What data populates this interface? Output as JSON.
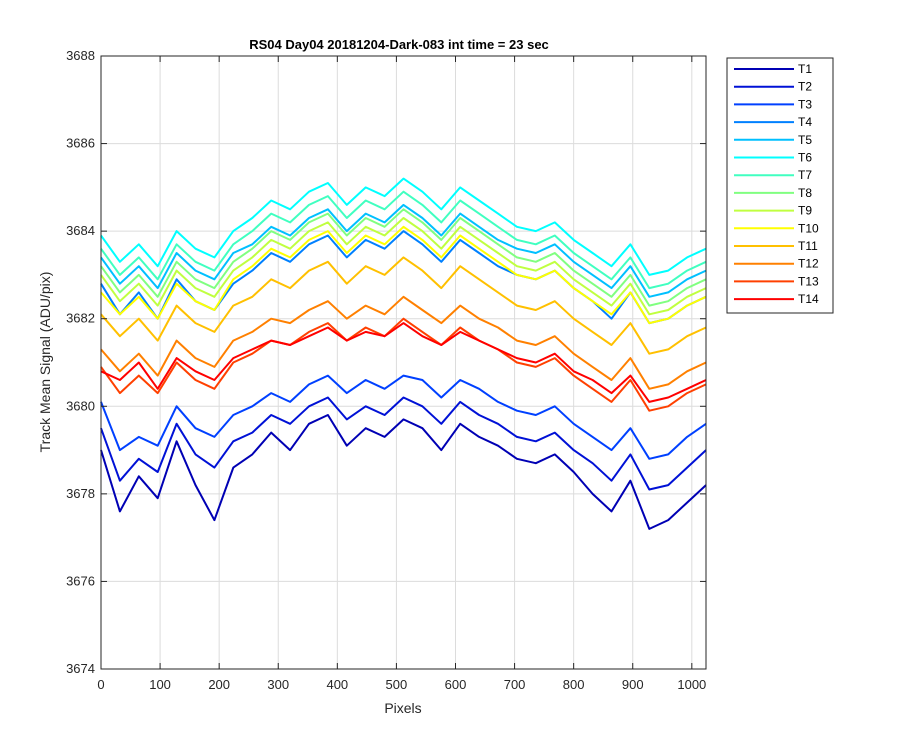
{
  "chart_data": {
    "type": "line",
    "title": "RS04 Day04 20181204-Dark-083 int time = 23 sec",
    "xlabel": "Pixels",
    "ylabel": "Track Mean Signal (ADU/pix)",
    "xlim": [
      0,
      1024
    ],
    "ylim": [
      3674,
      3688
    ],
    "xticks": [
      "0",
      "100",
      "200",
      "300",
      "400",
      "500",
      "600",
      "700",
      "800",
      "900",
      "1000"
    ],
    "yticks": [
      "3674",
      "3676",
      "3678",
      "3680",
      "3682",
      "3684",
      "3686",
      "3688"
    ],
    "grid": true,
    "legend_position": "outside-right",
    "x_sample_step": 32,
    "series": [
      {
        "name": "T1",
        "color": "#0000b4",
        "values": [
          3679.0,
          3677.6,
          3678.4,
          3677.9,
          3679.2,
          3678.2,
          3677.4,
          3678.6,
          3678.9,
          3679.4,
          3679.0,
          3679.6,
          3679.8,
          3679.1,
          3679.5,
          3679.3,
          3679.7,
          3679.5,
          3679.0,
          3679.6,
          3679.3,
          3679.1,
          3678.8,
          3678.7,
          3678.9,
          3678.5,
          3678.0,
          3677.6,
          3678.3,
          3677.2,
          3677.4,
          3677.8,
          3678.2
        ]
      },
      {
        "name": "T2",
        "color": "#0011d6",
        "values": [
          3679.5,
          3678.3,
          3678.8,
          3678.5,
          3679.6,
          3678.9,
          3678.6,
          3679.2,
          3679.4,
          3679.8,
          3679.6,
          3680.0,
          3680.2,
          3679.7,
          3680.0,
          3679.8,
          3680.2,
          3680.0,
          3679.6,
          3680.1,
          3679.8,
          3679.6,
          3679.3,
          3679.2,
          3679.4,
          3679.0,
          3678.7,
          3678.3,
          3678.9,
          3678.1,
          3678.2,
          3678.6,
          3679.0
        ]
      },
      {
        "name": "T3",
        "color": "#0040ff",
        "values": [
          3680.1,
          3679.0,
          3679.3,
          3679.1,
          3680.0,
          3679.5,
          3679.3,
          3679.8,
          3680.0,
          3680.3,
          3680.1,
          3680.5,
          3680.7,
          3680.3,
          3680.6,
          3680.4,
          3680.7,
          3680.6,
          3680.2,
          3680.6,
          3680.4,
          3680.1,
          3679.9,
          3679.8,
          3680.0,
          3679.6,
          3679.3,
          3679.0,
          3679.5,
          3678.8,
          3678.9,
          3679.3,
          3679.6
        ]
      },
      {
        "name": "T4",
        "color": "#0080ff",
        "values": [
          3682.8,
          3682.1,
          3682.6,
          3682.0,
          3682.9,
          3682.4,
          3682.2,
          3682.8,
          3683.1,
          3683.5,
          3683.3,
          3683.7,
          3683.9,
          3683.4,
          3683.8,
          3683.6,
          3684.0,
          3683.7,
          3683.3,
          3683.8,
          3683.5,
          3683.2,
          3683.0,
          3682.9,
          3683.1,
          3682.7,
          3682.4,
          3682.0,
          3682.6,
          3681.9,
          3682.0,
          3682.3,
          3682.5
        ]
      },
      {
        "name": "T5",
        "color": "#00c0ff",
        "values": [
          3683.4,
          3682.8,
          3683.2,
          3682.7,
          3683.5,
          3683.1,
          3682.9,
          3683.5,
          3683.7,
          3684.1,
          3683.9,
          3684.3,
          3684.5,
          3684.0,
          3684.4,
          3684.2,
          3684.6,
          3684.3,
          3683.9,
          3684.4,
          3684.1,
          3683.8,
          3683.6,
          3683.5,
          3683.7,
          3683.3,
          3683.0,
          3682.7,
          3683.2,
          3682.5,
          3682.6,
          3682.9,
          3683.1
        ]
      },
      {
        "name": "T6",
        "color": "#00ffff",
        "values": [
          3683.9,
          3683.3,
          3683.7,
          3683.2,
          3684.0,
          3683.6,
          3683.4,
          3684.0,
          3684.3,
          3684.7,
          3684.5,
          3684.9,
          3685.1,
          3684.6,
          3685.0,
          3684.8,
          3685.2,
          3684.9,
          3684.5,
          3685.0,
          3684.7,
          3684.4,
          3684.1,
          3684.0,
          3684.2,
          3683.8,
          3683.5,
          3683.2,
          3683.7,
          3683.0,
          3683.1,
          3683.4,
          3683.6
        ]
      },
      {
        "name": "T7",
        "color": "#40ffc0",
        "values": [
          3683.6,
          3683.0,
          3683.4,
          3682.9,
          3683.7,
          3683.3,
          3683.1,
          3683.7,
          3684.0,
          3684.4,
          3684.2,
          3684.6,
          3684.8,
          3684.3,
          3684.7,
          3684.5,
          3684.9,
          3684.6,
          3684.2,
          3684.7,
          3684.4,
          3684.1,
          3683.8,
          3683.7,
          3683.9,
          3683.5,
          3683.2,
          3682.9,
          3683.4,
          3682.7,
          3682.8,
          3683.1,
          3683.3
        ]
      },
      {
        "name": "T8",
        "color": "#80ff80",
        "values": [
          3683.2,
          3682.6,
          3683.0,
          3682.5,
          3683.3,
          3682.9,
          3682.7,
          3683.3,
          3683.6,
          3684.0,
          3683.8,
          3684.2,
          3684.4,
          3683.9,
          3684.3,
          3684.1,
          3684.5,
          3684.2,
          3683.8,
          3684.3,
          3684.0,
          3683.7,
          3683.4,
          3683.3,
          3683.5,
          3683.1,
          3682.8,
          3682.5,
          3683.0,
          3682.3,
          3682.4,
          3682.7,
          3682.9
        ]
      },
      {
        "name": "T9",
        "color": "#c0ff40",
        "values": [
          3683.0,
          3682.4,
          3682.8,
          3682.3,
          3683.1,
          3682.7,
          3682.5,
          3683.1,
          3683.4,
          3683.8,
          3683.6,
          3684.0,
          3684.2,
          3683.7,
          3684.1,
          3683.9,
          3684.3,
          3684.0,
          3683.6,
          3684.1,
          3683.8,
          3683.5,
          3683.2,
          3683.1,
          3683.3,
          3682.9,
          3682.6,
          3682.3,
          3682.8,
          3682.1,
          3682.2,
          3682.5,
          3682.7
        ]
      },
      {
        "name": "T10",
        "color": "#ffff00",
        "values": [
          3682.6,
          3682.1,
          3682.5,
          3682.0,
          3682.8,
          3682.4,
          3682.2,
          3682.9,
          3683.2,
          3683.6,
          3683.4,
          3683.8,
          3684.0,
          3683.5,
          3683.9,
          3683.7,
          3684.1,
          3683.8,
          3683.4,
          3683.9,
          3683.6,
          3683.3,
          3683.0,
          3682.9,
          3683.1,
          3682.7,
          3682.4,
          3682.1,
          3682.6,
          3681.9,
          3682.0,
          3682.3,
          3682.5
        ]
      },
      {
        "name": "T11",
        "color": "#ffc000",
        "values": [
          3682.1,
          3681.6,
          3682.0,
          3681.5,
          3682.3,
          3681.9,
          3681.7,
          3682.3,
          3682.5,
          3682.9,
          3682.7,
          3683.1,
          3683.3,
          3682.8,
          3683.2,
          3683.0,
          3683.4,
          3683.1,
          3682.7,
          3683.2,
          3682.9,
          3682.6,
          3682.3,
          3682.2,
          3682.4,
          3682.0,
          3681.7,
          3681.4,
          3681.9,
          3681.2,
          3681.3,
          3681.6,
          3681.8
        ]
      },
      {
        "name": "T12",
        "color": "#ff8000",
        "values": [
          3681.3,
          3680.8,
          3681.2,
          3680.7,
          3681.5,
          3681.1,
          3680.9,
          3681.5,
          3681.7,
          3682.0,
          3681.9,
          3682.2,
          3682.4,
          3682.0,
          3682.3,
          3682.1,
          3682.5,
          3682.2,
          3681.9,
          3682.3,
          3682.0,
          3681.8,
          3681.5,
          3681.4,
          3681.6,
          3681.2,
          3680.9,
          3680.6,
          3681.1,
          3680.4,
          3680.5,
          3680.8,
          3681.0
        ]
      },
      {
        "name": "T13",
        "color": "#ff4000",
        "values": [
          3680.9,
          3680.3,
          3680.7,
          3680.3,
          3681.0,
          3680.6,
          3680.4,
          3681.0,
          3681.2,
          3681.5,
          3681.4,
          3681.7,
          3681.9,
          3681.5,
          3681.8,
          3681.6,
          3682.0,
          3681.7,
          3681.4,
          3681.8,
          3681.5,
          3681.3,
          3681.0,
          3680.9,
          3681.1,
          3680.7,
          3680.4,
          3680.1,
          3680.6,
          3679.9,
          3680.0,
          3680.3,
          3680.5
        ]
      },
      {
        "name": "T14",
        "color": "#ff0000",
        "values": [
          3680.8,
          3680.6,
          3681.0,
          3680.4,
          3681.1,
          3680.8,
          3680.6,
          3681.1,
          3681.3,
          3681.5,
          3681.4,
          3681.6,
          3681.8,
          3681.5,
          3681.7,
          3681.6,
          3681.9,
          3681.6,
          3681.4,
          3681.7,
          3681.5,
          3681.3,
          3681.1,
          3681.0,
          3681.2,
          3680.8,
          3680.6,
          3680.3,
          3680.7,
          3680.1,
          3680.2,
          3680.4,
          3680.6
        ]
      }
    ]
  }
}
